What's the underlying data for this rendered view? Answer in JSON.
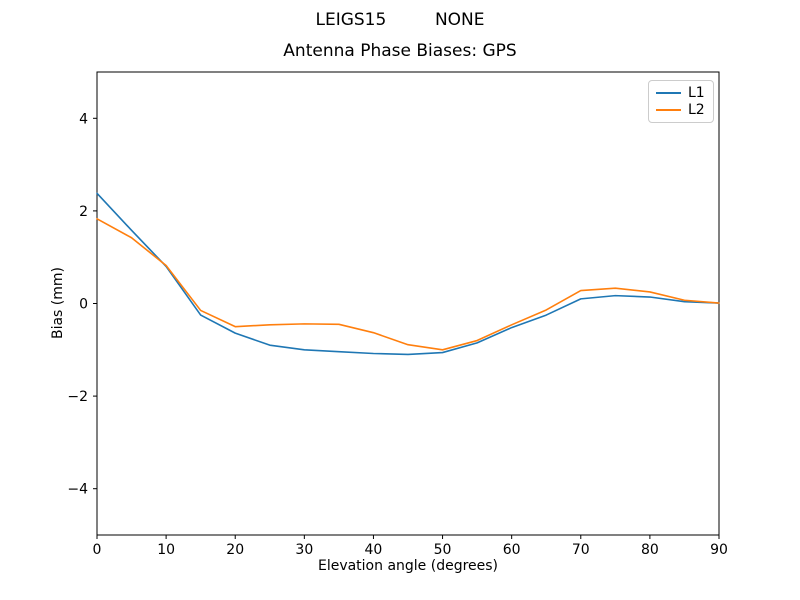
{
  "chart_data": {
    "type": "line",
    "suptitle": "LEIGS15         NONE",
    "title": "Antenna Phase Biases: GPS",
    "xlabel": "Elevation angle (degrees)",
    "ylabel": "Bias (mm)",
    "xlim": [
      0,
      90
    ],
    "ylim": [
      -5,
      5
    ],
    "xticks": [
      0,
      10,
      20,
      30,
      40,
      50,
      60,
      70,
      80,
      90
    ],
    "yticks": [
      -4,
      -2,
      0,
      2,
      4
    ],
    "grid": false,
    "background": "#ffffff",
    "axis_color": "#000000",
    "legend_position": "upper right",
    "x": [
      0,
      5,
      10,
      15,
      20,
      25,
      30,
      35,
      40,
      45,
      50,
      55,
      60,
      65,
      70,
      75,
      80,
      85,
      90
    ],
    "series": [
      {
        "name": "L1",
        "color": "#1f77b4",
        "values": [
          2.38,
          1.58,
          0.8,
          -0.25,
          -0.64,
          -0.9,
          -1.0,
          -1.04,
          -1.08,
          -1.1,
          -1.06,
          -0.85,
          -0.52,
          -0.25,
          0.1,
          0.17,
          0.14,
          0.04,
          0.01
        ]
      },
      {
        "name": "L2",
        "color": "#ff7f0e",
        "values": [
          1.83,
          1.42,
          0.82,
          -0.15,
          -0.5,
          -0.46,
          -0.44,
          -0.45,
          -0.63,
          -0.89,
          -1.0,
          -0.8,
          -0.46,
          -0.14,
          0.28,
          0.33,
          0.25,
          0.07,
          0.01
        ]
      }
    ]
  }
}
